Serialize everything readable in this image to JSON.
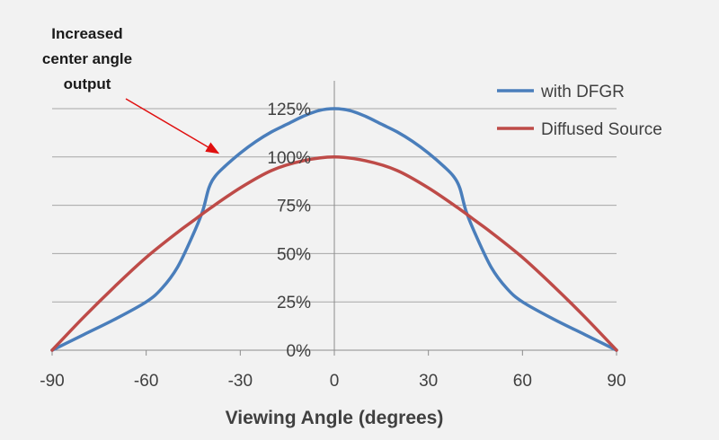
{
  "chart_data": {
    "type": "line",
    "title": "",
    "xlabel": "Viewing Angle (degrees)",
    "ylabel": "",
    "xlim": [
      -90,
      90
    ],
    "ylim": [
      0,
      125
    ],
    "x_ticks": [
      "-90",
      "-60",
      "-30",
      "0",
      "30",
      "60",
      "90"
    ],
    "y_ticks": [
      "0%",
      "25%",
      "50%",
      "75%",
      "100%",
      "125%"
    ],
    "grid": "horizontal",
    "legend_position": "top-right",
    "series": [
      {
        "name": "with DFGR",
        "color": "#4a7ebb",
        "x": [
          -90,
          -80,
          -70,
          -60,
          -55,
          -50,
          -45,
          -42,
          -40,
          -38,
          -35,
          -30,
          -25,
          -20,
          -15,
          -10,
          -5,
          0,
          5,
          10,
          15,
          20,
          25,
          30,
          35,
          38,
          40,
          42,
          45,
          50,
          55,
          60,
          70,
          80,
          90
        ],
        "y": [
          0,
          8,
          16,
          25,
          32,
          43,
          60,
          72,
          84,
          90,
          95,
          102,
          108,
          113,
          117,
          121,
          124,
          125,
          124,
          121,
          117,
          113,
          108,
          102,
          95,
          90,
          84,
          72,
          60,
          43,
          32,
          25,
          16,
          8,
          0
        ]
      },
      {
        "name": "Diffused Source",
        "color": "#be4b48",
        "x": [
          -90,
          -80,
          -70,
          -60,
          -50,
          -45,
          -40,
          -30,
          -20,
          -10,
          0,
          10,
          20,
          30,
          40,
          45,
          50,
          60,
          70,
          80,
          90
        ],
        "y": [
          0,
          17,
          33,
          48,
          61,
          67,
          73,
          84,
          93,
          98,
          100,
          98,
          93,
          84,
          73,
          67,
          61,
          48,
          33,
          17,
          0
        ]
      }
    ],
    "annotations": [
      {
        "lines": [
          "Increased",
          "center angle",
          "output"
        ],
        "points_to": {
          "x": -37,
          "y": 102
        }
      }
    ]
  }
}
